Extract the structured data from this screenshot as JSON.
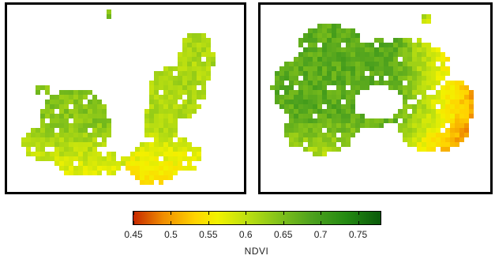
{
  "chart_data": {
    "type": "heatmap",
    "panels": [
      "left",
      "right"
    ],
    "colorbar": {
      "label": "NDVI",
      "min": 0.45,
      "max": 0.78,
      "ticks": [
        0.45,
        0.5,
        0.55,
        0.6,
        0.65,
        0.7,
        0.75
      ],
      "tick_labels": [
        "0.45",
        "0.5",
        "0.55",
        "0.6",
        "0.65",
        "0.7",
        "0.75"
      ],
      "colors": [
        "#c62800",
        "#f08c00",
        "#ffd400",
        "#f2f200",
        "#bde010",
        "#86c41a",
        "#4ea21e",
        "#248a12",
        "#0a5a0a"
      ]
    }
  }
}
